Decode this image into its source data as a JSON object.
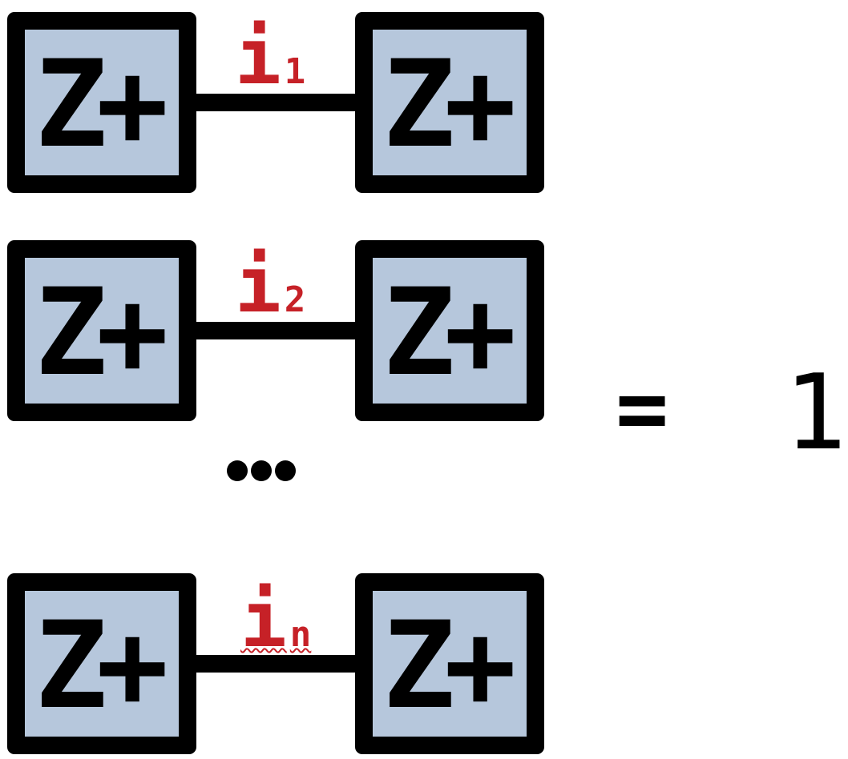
{
  "rows": [
    {
      "left_box_label": "Z+",
      "index_main": "i",
      "index_sub": "1",
      "right_box_label": "Z+"
    },
    {
      "left_box_label": "Z+",
      "index_main": "i",
      "index_sub": "2",
      "right_box_label": "Z+"
    },
    {
      "left_box_label": "Z+",
      "index_main": "i",
      "index_sub": "n",
      "right_box_label": "Z+"
    }
  ],
  "ellipsis": "...",
  "equals": "=",
  "result": "1",
  "colors": {
    "box_fill": "#b6c7dc",
    "box_border": "#000000",
    "index_label": "#c62127",
    "wire": "#000000"
  }
}
